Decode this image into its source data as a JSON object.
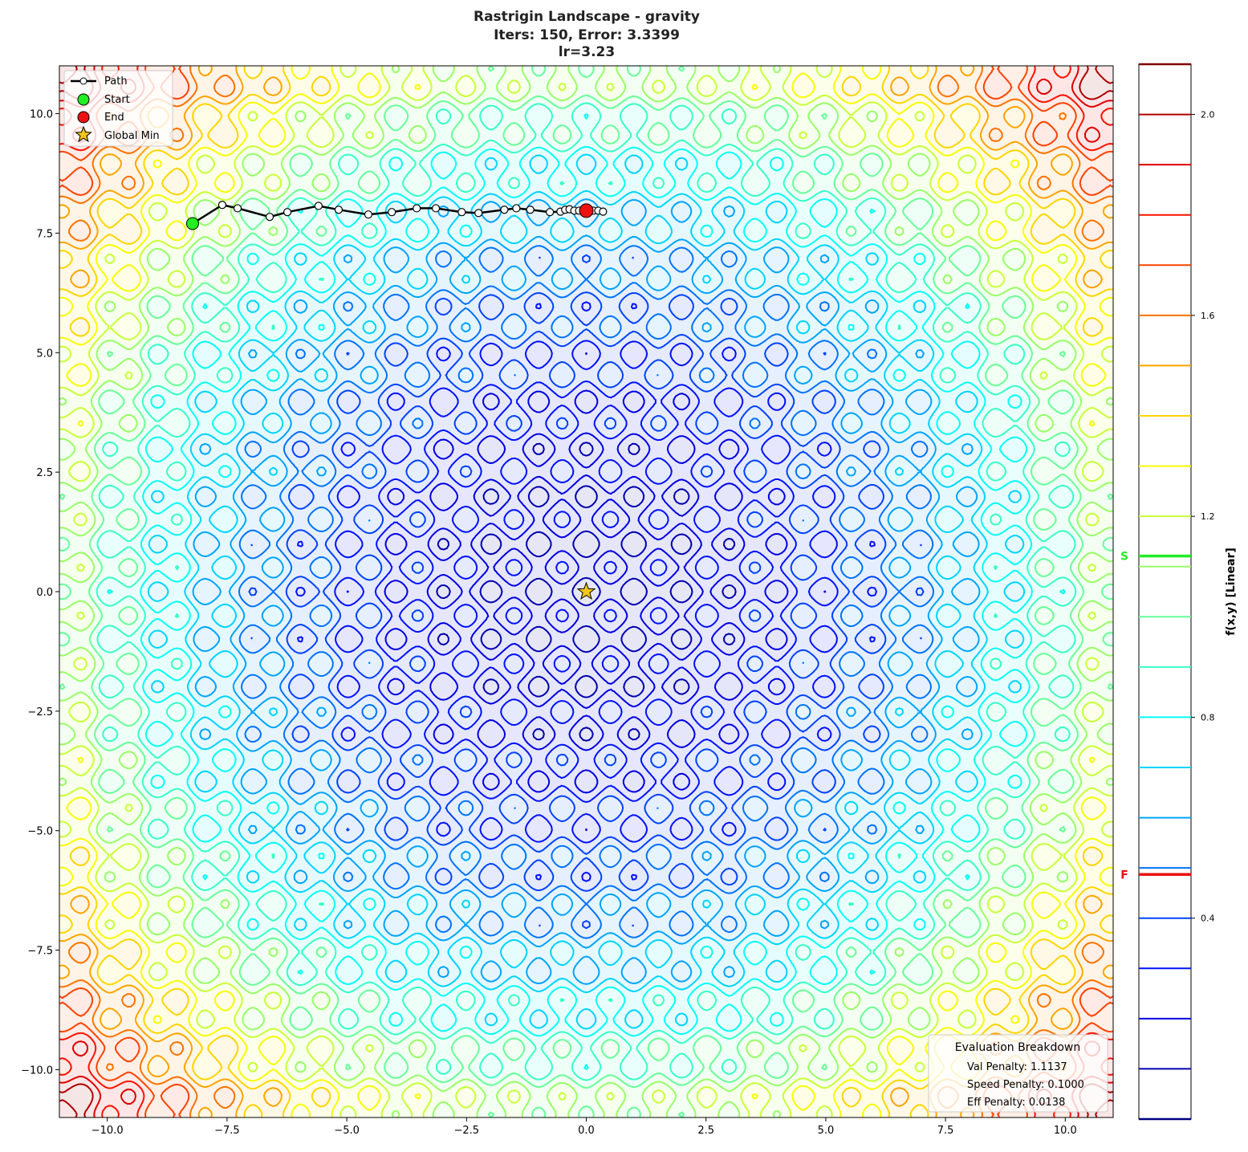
{
  "chart_data": {
    "type": "contour",
    "title_lines": [
      "Rastrigin Landscape - gravity",
      "Iters: 150, Error: 3.3399",
      "lr=3.23"
    ],
    "function": "rastrigin",
    "xlim": [
      -11,
      11
    ],
    "ylim": [
      -11,
      11
    ],
    "xticks": [
      -10,
      -7.5,
      -5,
      -2.5,
      0,
      2.5,
      5,
      7.5,
      10
    ],
    "yticks": [
      -10,
      -7.5,
      -5,
      -2.5,
      0,
      2.5,
      5,
      7.5,
      10
    ],
    "xtick_labels": [
      "−10.0",
      "−7.5",
      "−5.0",
      "−2.5",
      "0.0",
      "2.5",
      "5.0",
      "7.5",
      "10.0"
    ],
    "ytick_labels": [
      "−10.0",
      "−7.5",
      "−5.0",
      "−2.5",
      "0.0",
      "2.5",
      "5.0",
      "7.5",
      "10.0"
    ],
    "colormap": "jet",
    "grid": false,
    "colorbar": {
      "label": "f(x,y) [Linear]",
      "range": [
        0,
        2.1
      ],
      "levels": [
        0.1,
        0.2,
        0.3,
        0.4,
        0.5,
        0.6,
        0.7,
        0.8,
        0.9,
        1.0,
        1.1,
        1.2,
        1.3,
        1.4,
        1.5,
        1.6,
        1.7,
        1.8,
        1.9,
        2.0
      ],
      "ticks": [
        0.4,
        0.8,
        1.2,
        1.6,
        2.0
      ],
      "tick_labels": [
        "0.4",
        "0.8",
        "1.2",
        "1.6",
        "2.0"
      ],
      "markers": [
        {
          "label": "S",
          "value": 1.121,
          "color": "#22ee22"
        },
        {
          "label": "F",
          "value": 0.487,
          "color": "#ee1111"
        }
      ]
    },
    "path": {
      "x": [
        -8.22,
        -7.6,
        -7.28,
        -6.61,
        -6.24,
        -5.59,
        -5.17,
        -4.55,
        -4.06,
        -3.54,
        -3.14,
        -2.6,
        -2.25,
        -1.71,
        -1.46,
        -1.17,
        -0.76,
        -0.54,
        -0.44,
        -0.35,
        -0.25,
        -0.15,
        -0.05,
        0.05,
        0.15,
        0.25,
        0.35,
        0.0
      ],
      "y": [
        7.7,
        8.09,
        8.02,
        7.84,
        7.94,
        8.07,
        7.99,
        7.89,
        7.94,
        8.02,
        8.02,
        7.94,
        7.92,
        7.99,
        8.02,
        7.99,
        7.94,
        7.95,
        7.99,
        8.0,
        7.97,
        7.97,
        7.97,
        7.97,
        7.97,
        7.97,
        7.95,
        7.97
      ]
    },
    "start": {
      "x": -8.22,
      "y": 7.7,
      "color": "#22ee22"
    },
    "end": {
      "x": 0.0,
      "y": 7.97,
      "color": "#ee1111"
    },
    "global_min": {
      "x": 0,
      "y": 0,
      "color": "#f5c518"
    },
    "legend": {
      "placement": "upper-left",
      "entries": [
        "Path",
        "Start",
        "End",
        "Global Min"
      ]
    },
    "evaluation": {
      "title": "Evaluation Breakdown",
      "lines": [
        "Val Penalty: 1.1137",
        "Speed Penalty: 0.1000",
        "Eff Penalty: 0.0138"
      ]
    }
  }
}
